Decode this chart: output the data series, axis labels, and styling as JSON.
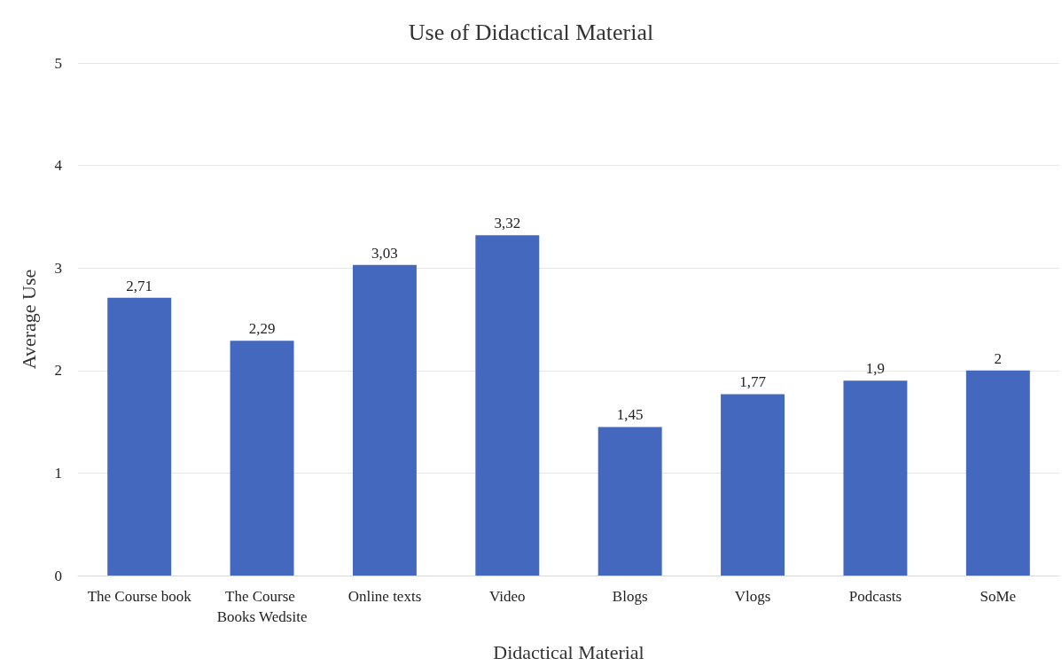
{
  "chart_data": {
    "type": "bar",
    "title": "Use of Didactical Material",
    "xlabel": "Didactical Material",
    "ylabel": "Average Use",
    "categories": [
      "The Course book",
      "The Course Books Wedsite",
      "Online texts",
      "Video",
      "Blogs",
      "Vlogs",
      "Podcasts",
      "SoMe"
    ],
    "series": [
      {
        "color": "#4468bd",
        "values": [
          2.71,
          2.29,
          3.03,
          3.32,
          1.45,
          1.77,
          1.9,
          2
        ],
        "value_labels": [
          "2,71",
          "2,29",
          "3,03",
          "3,32",
          "1,45",
          "1,77",
          "1,9",
          "2"
        ]
      }
    ],
    "ylim": [
      0,
      5
    ],
    "yticks": [
      0,
      1,
      2,
      3,
      4,
      5
    ],
    "grid": "y"
  }
}
